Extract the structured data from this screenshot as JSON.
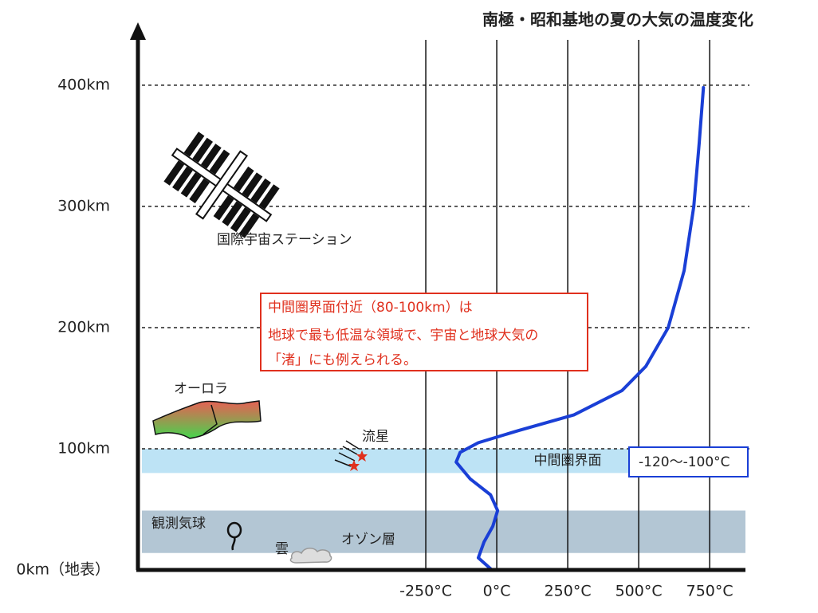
{
  "chart_data": {
    "type": "line",
    "title": "南極・昭和基地の夏の大気の温度変化",
    "xlim": [
      -1264,
      876
    ],
    "ylim": [
      0,
      444
    ],
    "xticks": [
      {
        "value": -250,
        "label": "-250°C"
      },
      {
        "value": 0,
        "label": "0°C"
      },
      {
        "value": 250,
        "label": "250°C"
      },
      {
        "value": 500,
        "label": "500°C"
      },
      {
        "value": 750,
        "label": "750°C"
      }
    ],
    "yticks": [
      {
        "value": 0,
        "label": "0km（地表）"
      },
      {
        "value": 100,
        "label": "100km"
      },
      {
        "value": 200,
        "label": "200km"
      },
      {
        "value": 300,
        "label": "300km"
      },
      {
        "value": 400,
        "label": "400km"
      }
    ],
    "grid": true,
    "series": [
      {
        "color": "#1a3fd6",
        "x": [
          -17,
          -65,
          -45,
          -14,
          3,
          -22,
          -93,
          -143,
          -129,
          -65,
          76,
          272,
          441,
          525,
          604,
          660,
          694,
          713,
          728
        ],
        "values": [
          0,
          10,
          23,
          36,
          49,
          62,
          75,
          89,
          97,
          105,
          115,
          128,
          148,
          168,
          200,
          247,
          300,
          352,
          398
        ]
      }
    ],
    "bands": [
      {
        "name": "中間圏界面",
        "range": [
          80,
          100
        ],
        "color": "#bde3f5"
      },
      {
        "name": "オゾン層",
        "range": [
          14,
          49
        ],
        "color": "#b3c6d4"
      }
    ],
    "note": [
      "中間圏界面付近（80-100km）は",
      "地球で最も低温な領域で、宇宙と地球大気の",
      "「渚」にも例えられる。"
    ],
    "range_label": "-120〜-100°C",
    "labels": [
      "国際宇宙ステーション",
      "オーロラ",
      "流星",
      "観測気球",
      "雲"
    ]
  }
}
